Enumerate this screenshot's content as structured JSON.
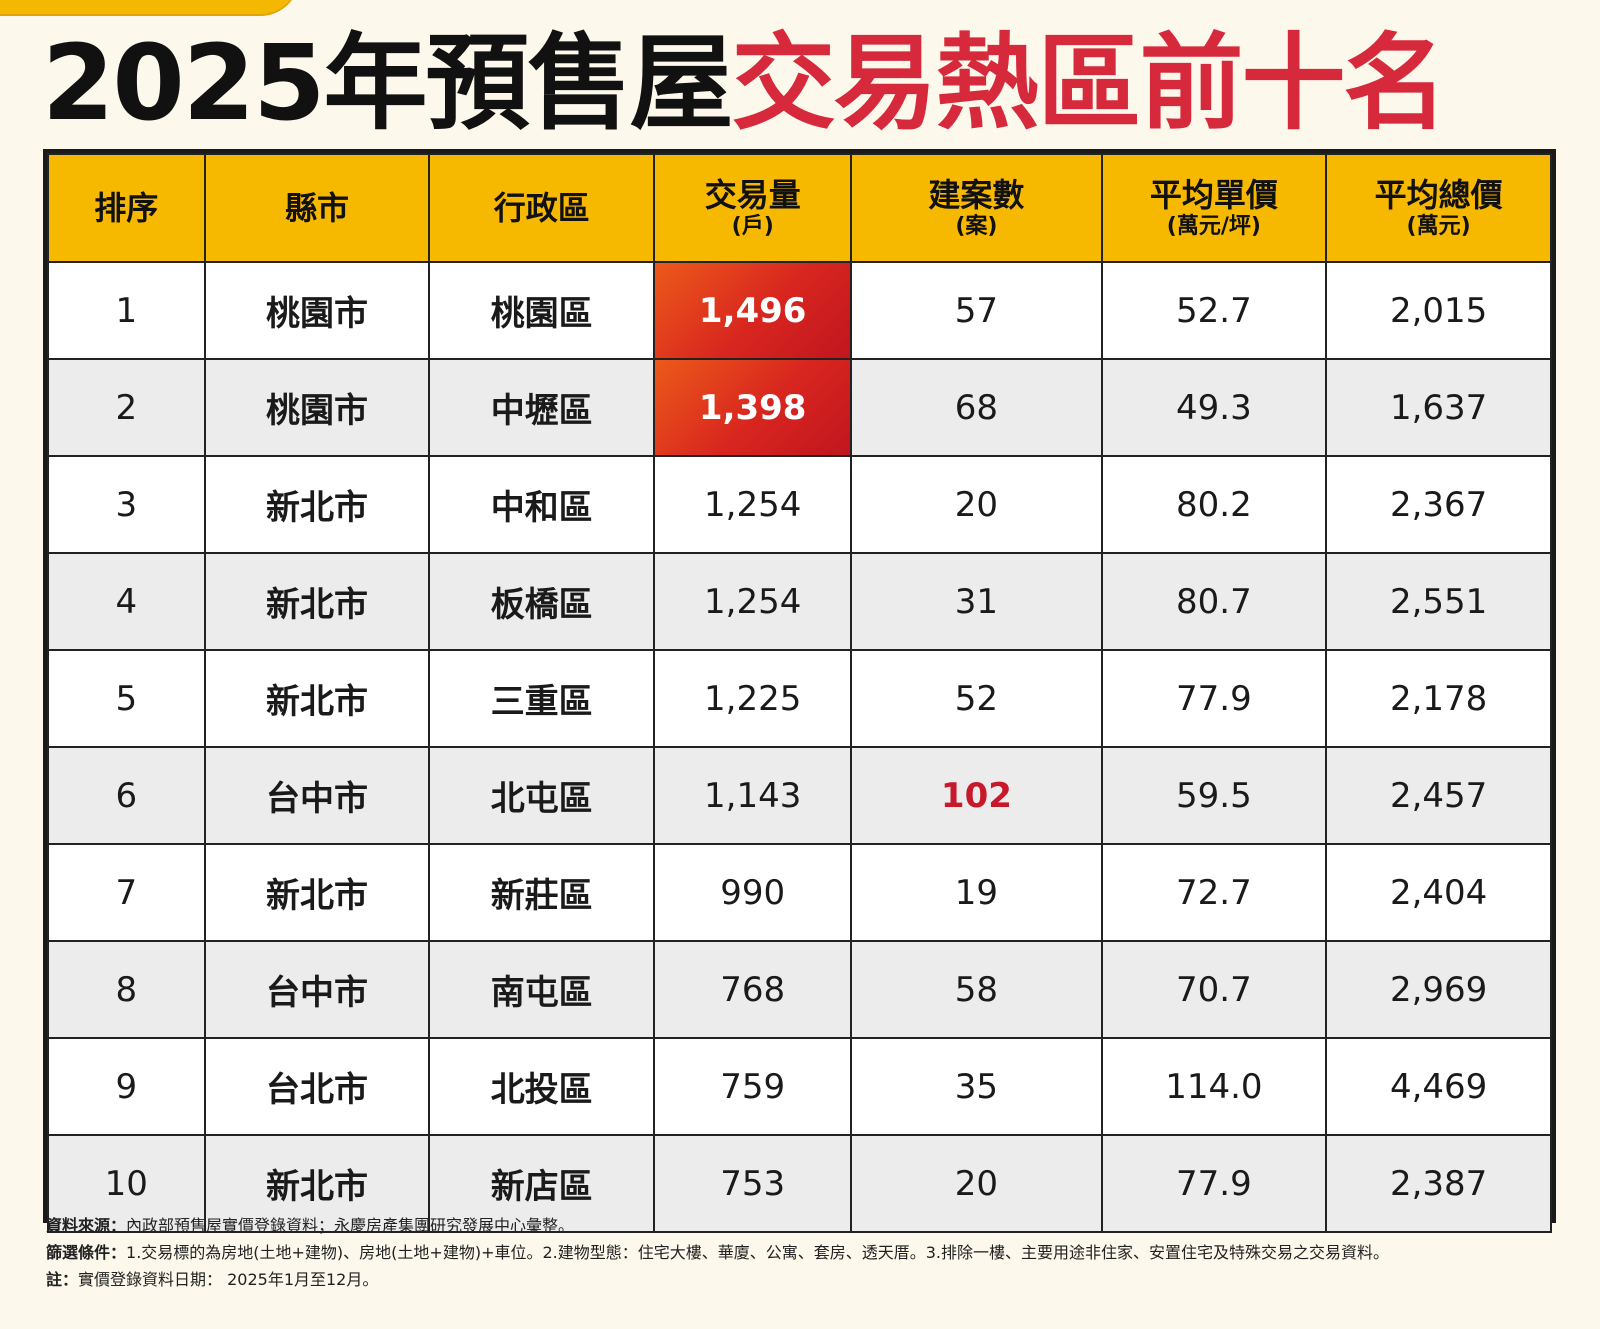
{
  "title": {
    "part_black": "2025年預售屋",
    "part_red": "交易熱區前十名"
  },
  "colors": {
    "accent_yellow": "#f7b800",
    "title_red": "#d62a3c",
    "highlight_red": "#c8182c"
  },
  "table": {
    "headers": [
      {
        "main": "排序",
        "sub": ""
      },
      {
        "main": "縣市",
        "sub": ""
      },
      {
        "main": "行政區",
        "sub": ""
      },
      {
        "main": "交易量",
        "sub": "(戶)"
      },
      {
        "main": "建案數",
        "sub": "(案)"
      },
      {
        "main": "平均單價",
        "sub": "(萬元/坪)"
      },
      {
        "main": "平均總價",
        "sub": "(萬元)"
      }
    ],
    "rows": [
      {
        "rank": "1",
        "city": "桃園市",
        "district": "桃園區",
        "volume": "1,496",
        "projects": "57",
        "unit_price": "52.7",
        "total_price": "2,015"
      },
      {
        "rank": "2",
        "city": "桃園市",
        "district": "中壢區",
        "volume": "1,398",
        "projects": "68",
        "unit_price": "49.3",
        "total_price": "1,637"
      },
      {
        "rank": "3",
        "city": "新北市",
        "district": "中和區",
        "volume": "1,254",
        "projects": "20",
        "unit_price": "80.2",
        "total_price": "2,367"
      },
      {
        "rank": "4",
        "city": "新北市",
        "district": "板橋區",
        "volume": "1,254",
        "projects": "31",
        "unit_price": "80.7",
        "total_price": "2,551"
      },
      {
        "rank": "5",
        "city": "新北市",
        "district": "三重區",
        "volume": "1,225",
        "projects": "52",
        "unit_price": "77.9",
        "total_price": "2,178"
      },
      {
        "rank": "6",
        "city": "台中市",
        "district": "北屯區",
        "volume": "1,143",
        "projects": "102",
        "unit_price": "59.5",
        "total_price": "2,457"
      },
      {
        "rank": "7",
        "city": "新北市",
        "district": "新莊區",
        "volume": "990",
        "projects": "19",
        "unit_price": "72.7",
        "total_price": "2,404"
      },
      {
        "rank": "8",
        "city": "台中市",
        "district": "南屯區",
        "volume": "768",
        "projects": "58",
        "unit_price": "70.7",
        "total_price": "2,969"
      },
      {
        "rank": "9",
        "city": "台北市",
        "district": "北投區",
        "volume": "759",
        "projects": "35",
        "unit_price": "114.0",
        "total_price": "4,469"
      },
      {
        "rank": "10",
        "city": "新北市",
        "district": "新店區",
        "volume": "753",
        "projects": "20",
        "unit_price": "77.9",
        "total_price": "2,387"
      }
    ]
  },
  "footnotes": {
    "source_label": "資料來源：",
    "source_text": "內政部預售屋實價登錄資料；永慶房產集團研究發展中心彙整。",
    "filter_label": "篩選條件：",
    "filter_text": "1.交易標的為房地(土地+建物)、房地(土地+建物)+車位。2.建物型態：住宅大樓、華廈、公寓、套房、透天厝。3.排除一樓、主要用途非住家、安置住宅及特殊交易之交易資料。",
    "note_label": "註：",
    "note_text": "實價登錄資料日期： 2025年1月至12月。"
  }
}
